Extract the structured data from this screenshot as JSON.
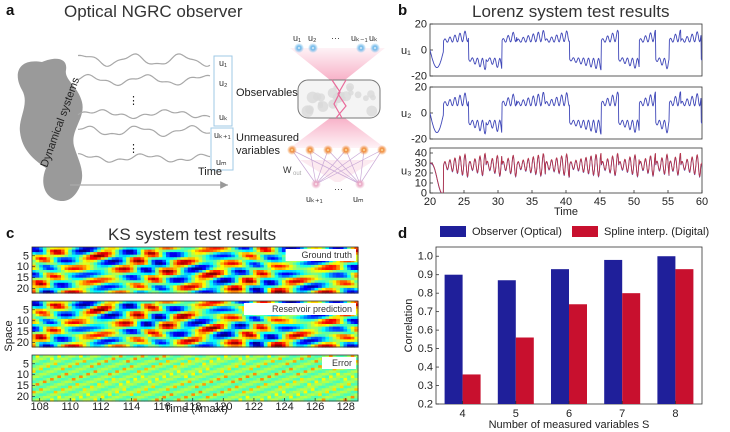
{
  "panel_a": {
    "label": "a",
    "title": "Optical NGRC observer",
    "blob_label": "Dynamical systems",
    "time_label": "Time",
    "observables_label": "Observables",
    "unmeasured_label_1": "Unmeasured",
    "unmeasured_label_2": "variables",
    "wout_label": "W",
    "wout_sub": "out",
    "dots_vertical": "⋮",
    "dots_horizontal": "···",
    "signal_labels": [
      "u₁",
      "u₂",
      "uₖ",
      "uₖ₊₁",
      "uₘ"
    ],
    "top_node_labels": [
      "u₁",
      "u₂",
      "uₖ₋₁",
      "uₖ"
    ],
    "bottom_node_labels": [
      "uₖ₊₁",
      "uₘ"
    ],
    "colors": {
      "blob": "#9a9a9a",
      "node_blue": "#6fb8ea",
      "node_orange": "#f08c3c",
      "node_pink": "#e9a6c3",
      "beam": "#f6b3c8"
    }
  },
  "panel_b": {
    "label": "b",
    "title": "Lorenz system test results",
    "xlabel": "Time",
    "colors": {
      "blue": "#3f47b8",
      "red": "#b5354a"
    }
  },
  "panel_c": {
    "label": "c",
    "title": "KS system test results",
    "xlabel": "Time (λmaxt)",
    "ylabel": "Space",
    "tags": [
      "Ground truth",
      "Reservoir prediction",
      "Error"
    ]
  },
  "panel_d": {
    "label": "d"
  },
  "chart_data": [
    {
      "type": "line",
      "title": "Lorenz system test results",
      "xlabel": "Time",
      "xlim": [
        20,
        60
      ],
      "xticks": [
        20,
        25,
        30,
        35,
        40,
        45,
        50,
        55,
        60
      ],
      "series": [
        {
          "name": "u1",
          "ylabel": "u₁",
          "ylim": [
            -20,
            20
          ],
          "yticks": [
            -20,
            0,
            20
          ],
          "color": "#3f47b8"
        },
        {
          "name": "u2",
          "ylabel": "u₂",
          "ylim": [
            -20,
            20
          ],
          "yticks": [
            -20,
            0,
            20
          ],
          "color": "#3f47b8"
        },
        {
          "name": "u3",
          "ylabel": "u₃",
          "ylim": [
            0,
            45
          ],
          "yticks": [
            0,
            10,
            20,
            30,
            40
          ],
          "color": "#b5354a",
          "overlay_color": "#3f47b8"
        }
      ]
    },
    {
      "type": "heatmap",
      "title": "KS system test results",
      "xlabel": "Time (λmaxt)",
      "ylabel": "Space",
      "xlim": [
        107.5,
        128.8
      ],
      "xticks": [
        108,
        110,
        112,
        114,
        116,
        118,
        120,
        122,
        124,
        126,
        128
      ],
      "yticks": [
        5,
        10,
        15,
        20
      ],
      "ylim": [
        1,
        22
      ],
      "panels": [
        "Ground truth",
        "Reservoir prediction",
        "Error"
      ]
    },
    {
      "type": "bar",
      "xlabel": "Number of measured variables S",
      "ylabel": "Correlation",
      "categories": [
        "4",
        "5",
        "6",
        "7",
        "8"
      ],
      "ylim": [
        0.2,
        1.05
      ],
      "yticks": [
        0.2,
        0.3,
        0.4,
        0.5,
        0.6,
        0.7,
        0.8,
        0.9,
        1.0
      ],
      "series": [
        {
          "name": "Observer (Optical)",
          "values": [
            0.9,
            0.87,
            0.93,
            0.98,
            1.0
          ],
          "color": "#1f1f9a"
        },
        {
          "name": "Spline interp. (Digital)",
          "values": [
            0.36,
            0.56,
            0.74,
            0.8,
            0.93
          ],
          "color": "#c8102e"
        }
      ]
    }
  ]
}
